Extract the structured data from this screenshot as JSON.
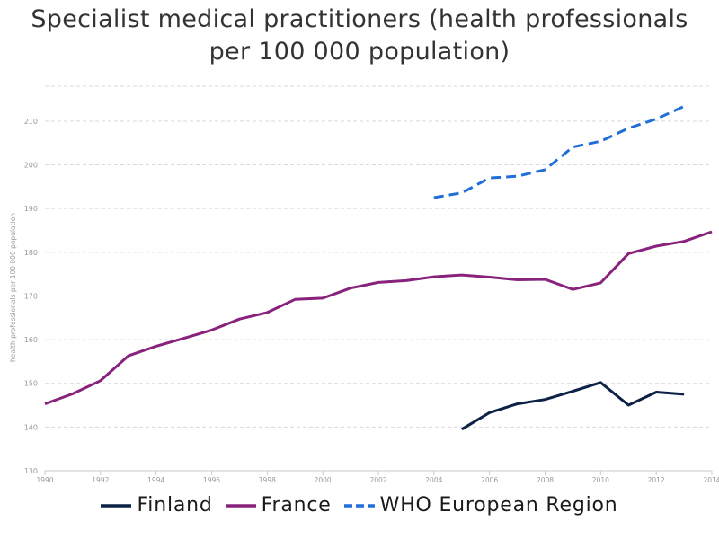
{
  "title_line1": "Specialist medical practitioners (health professionals",
  "title_line2": "per 100 000 population)",
  "chart_data": {
    "type": "line",
    "title": "Specialist medical practitioners (health professionals per 100 000 population)",
    "xlabel": "",
    "ylabel": "health professionals per 100 000 population",
    "xlim": [
      1990,
      2014
    ],
    "ylim": [
      130,
      218
    ],
    "x_ticks": [
      "1990",
      "1992",
      "1994",
      "1996",
      "1998",
      "2000",
      "2002",
      "2004",
      "2006",
      "2008",
      "2010",
      "2012",
      "2014"
    ],
    "y_ticks": [
      "130",
      "140",
      "150",
      "160",
      "170",
      "180",
      "190",
      "200",
      "210"
    ],
    "grid": true,
    "legend_position": "bottom",
    "series": [
      {
        "name": "Finland",
        "color": "#0d2247",
        "dash": "solid",
        "x": [
          2005,
          2006,
          2007,
          2008,
          2009,
          2010,
          2011,
          2012,
          2013
        ],
        "values": [
          139.5,
          143.3,
          145.3,
          146.3,
          148.2,
          150.2,
          145.0,
          148.0,
          147.5
        ]
      },
      {
        "name": "France",
        "color": "#88227c",
        "dash": "solid",
        "x": [
          1990,
          1991,
          1992,
          1993,
          1994,
          1995,
          1996,
          1997,
          1998,
          1999,
          2000,
          2001,
          2002,
          2003,
          2004,
          2005,
          2006,
          2007,
          2008,
          2009,
          2010,
          2011,
          2012,
          2013,
          2014
        ],
        "values": [
          145.3,
          147.6,
          150.6,
          156.3,
          158.5,
          160.3,
          162.2,
          164.7,
          166.2,
          169.2,
          169.5,
          171.8,
          173.1,
          173.5,
          174.4,
          174.8,
          174.3,
          173.7,
          173.8,
          171.5,
          173.0,
          179.7,
          181.4,
          182.5,
          184.7
        ]
      },
      {
        "name": "WHO European Region",
        "color": "#1f6fd6",
        "dash": "dashed",
        "x": [
          2004,
          2005,
          2006,
          2007,
          2008,
          2009,
          2010,
          2011,
          2012,
          2013
        ],
        "values": [
          192.5,
          193.6,
          197.0,
          197.4,
          198.9,
          204.1,
          205.4,
          208.4,
          210.5,
          213.4
        ]
      }
    ]
  }
}
